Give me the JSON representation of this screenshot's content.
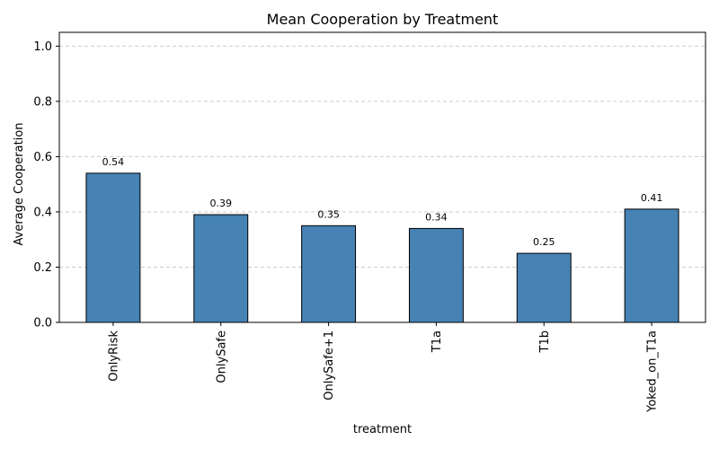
{
  "chart_data": {
    "type": "bar",
    "title": "Mean Cooperation by Treatment",
    "xlabel": "treatment",
    "ylabel": "Average Cooperation",
    "categories": [
      "OnlyRisk",
      "OnlySafe",
      "OnlySafe+1",
      "T1a",
      "T1b",
      "Yoked_on_T1a"
    ],
    "values": [
      0.54,
      0.39,
      0.35,
      0.34,
      0.25,
      0.41
    ],
    "data_labels": [
      "0.54",
      "0.39",
      "0.35",
      "0.34",
      "0.25",
      "0.41"
    ],
    "ylim": [
      0,
      1.05
    ],
    "yticks": [
      0.0,
      0.2,
      0.4,
      0.6,
      0.8,
      1.0
    ],
    "ytick_labels": [
      "0.0",
      "0.2",
      "0.4",
      "0.6",
      "0.8",
      "1.0"
    ],
    "grid": "y-dashed",
    "legend": "none",
    "colors": {
      "bar": "#4682b4",
      "edge": "#000000",
      "grid": "#cccccc"
    }
  }
}
